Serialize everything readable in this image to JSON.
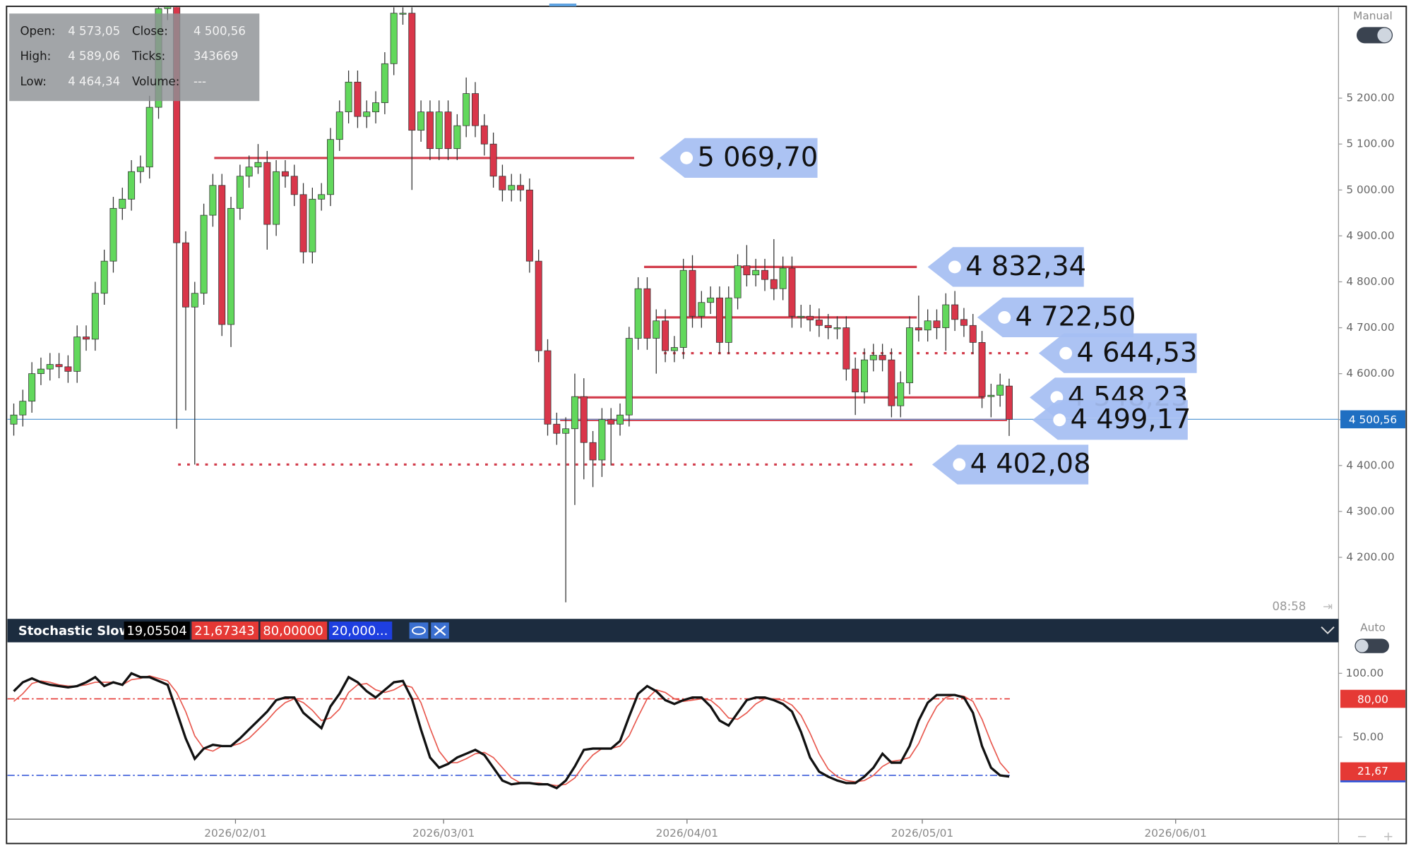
{
  "chart_data": [
    {
      "type": "candlestick",
      "open": [
        4490,
        4510,
        4540,
        4600,
        4610,
        4620,
        4615,
        4605,
        4680,
        4675,
        4775,
        4845,
        4960,
        4980,
        5040,
        5050,
        5180,
        5395,
        5400,
        4885,
        4745,
        4775,
        4945,
        5010,
        4707,
        4960,
        5030,
        5050,
        5060,
        4925,
        5040,
        5030,
        4990,
        4865,
        4980,
        4990,
        5110,
        5170,
        5235,
        5160,
        5170,
        5190,
        5275,
        5385,
        5385,
        5130,
        5170,
        5090,
        5170,
        5090,
        5140,
        5210,
        5140,
        5100,
        5030,
        5000,
        5010,
        5000,
        4845,
        4650,
        4490,
        4470,
        4480,
        4550,
        4450,
        4412,
        4500,
        4490,
        4510,
        4677,
        4785,
        4677,
        4715,
        4650,
        4657,
        4825,
        4725,
        4755,
        4765,
        4668,
        4765,
        4835,
        4815,
        4825,
        4805,
        4785,
        4830,
        4725,
        4725,
        4717,
        4705,
        4700,
        4700,
        4610,
        4560,
        4630,
        4640,
        4630,
        4530,
        4580,
        4700,
        4695,
        4715,
        4700,
        4750,
        4718,
        4705,
        4668,
        4550,
        4553,
        4573.05
      ],
      "high": [
        4535,
        4565,
        4625,
        4635,
        4645,
        4645,
        4640,
        4705,
        4705,
        4800,
        4870,
        4985,
        5005,
        5065,
        5075,
        5205,
        5420,
        5425,
        5425,
        4910,
        4800,
        4970,
        5035,
        5035,
        4985,
        5055,
        5075,
        5100,
        5085,
        5065,
        5065,
        5055,
        5015,
        5005,
        5015,
        5135,
        5195,
        5260,
        5260,
        5195,
        5215,
        5300,
        5398,
        5398,
        5398,
        5195,
        5195,
        5195,
        5195,
        5165,
        5245,
        5235,
        5165,
        5125,
        5055,
        5035,
        5035,
        5025,
        4870,
        4675,
        4515,
        4505,
        4600,
        4590,
        4475,
        4525,
        4525,
        4535,
        4702,
        4810,
        4810,
        4740,
        4740,
        4682,
        4850,
        4858,
        4780,
        4790,
        4790,
        4790,
        4860,
        4880,
        4850,
        4850,
        4893,
        4855,
        4855,
        4750,
        4750,
        4742,
        4730,
        4725,
        4725,
        4635,
        4655,
        4665,
        4665,
        4655,
        4605,
        4725,
        4770,
        4740,
        4740,
        4775,
        4780,
        4743,
        4730,
        4693,
        4578,
        4600,
        4589.06
      ],
      "low": [
        4465,
        4485,
        4515,
        4575,
        4585,
        4590,
        4580,
        4580,
        4650,
        4650,
        4750,
        4820,
        4935,
        4955,
        5015,
        5025,
        5155,
        5370,
        4480,
        4520,
        4402.08,
        4750,
        4920,
        4682,
        4658,
        4935,
        5005,
        5035,
        4870,
        4900,
        5005,
        4965,
        4840,
        4840,
        4955,
        4965,
        5085,
        5145,
        5135,
        5135,
        5145,
        5165,
        5250,
        5360,
        5000,
        5105,
        5065,
        5065,
        5065,
        5065,
        5115,
        5115,
        5075,
        5005,
        4975,
        4975,
        4975,
        4820,
        4625,
        4465,
        4445,
        4102,
        4314,
        4370,
        4353,
        4375,
        4400,
        4465,
        4485,
        4652,
        4652,
        4600,
        4625,
        4625,
        4632,
        4700,
        4700,
        4730,
        4643,
        4643,
        4740,
        4790,
        4790,
        4780,
        4760,
        4760,
        4700,
        4700,
        4692,
        4680,
        4675,
        4675,
        4585,
        4510,
        4535,
        4605,
        4605,
        4505,
        4505,
        4555,
        4670,
        4670,
        4675,
        4650,
        4693,
        4680,
        4643,
        4525,
        4505,
        4528,
        4464.34
      ],
      "close": [
        4510,
        4540,
        4600,
        4610,
        4620,
        4615,
        4605,
        4680,
        4675,
        4775,
        4845,
        4960,
        4980,
        5040,
        5050,
        5180,
        5395,
        5400,
        4885,
        4745,
        4775,
        4945,
        5010,
        4707,
        4960,
        5030,
        5050,
        5060,
        4925,
        5040,
        5030,
        4990,
        4865,
        4980,
        4990,
        5110,
        5170,
        5235,
        5160,
        5170,
        5190,
        5275,
        5385,
        5385,
        5130,
        5170,
        5090,
        5170,
        5090,
        5140,
        5210,
        5140,
        5100,
        5030,
        5000,
        5010,
        5000,
        4845,
        4650,
        4490,
        4470,
        4480,
        4550,
        4450,
        4412,
        4500,
        4490,
        4510,
        4677,
        4785,
        4677,
        4715,
        4650,
        4657,
        4825,
        4725,
        4755,
        4765,
        4668,
        4765,
        4835,
        4815,
        4825,
        4805,
        4785,
        4830,
        4725,
        4725,
        4717,
        4705,
        4700,
        4700,
        4610,
        4560,
        4630,
        4640,
        4630,
        4530,
        4580,
        4700,
        4695,
        4715,
        4700,
        4750,
        4718,
        4705,
        4668,
        4550,
        4553,
        4575,
        4500.56
      ],
      "color_up": "#62d85c",
      "color_down": "#d9364a",
      "xlim": [
        -0.7,
        146.4
      ],
      "xticks": [
        {
          "value": 24.5,
          "label": "2026/02/01"
        },
        {
          "value": 47.5,
          "label": "2026/03/01"
        },
        {
          "value": 74.4,
          "label": "2026/04/01"
        },
        {
          "value": 100.4,
          "label": "2026/05/01"
        },
        {
          "value": 128.4,
          "label": "2026/06/01"
        }
      ],
      "ylim": [
        4066,
        5398
      ],
      "yticks": [
        {
          "value": 5200,
          "label": "5 200.00"
        },
        {
          "value": 5100,
          "label": "5 100.00"
        },
        {
          "value": 5000,
          "label": "5 000.00"
        },
        {
          "value": 4900,
          "label": "4 900.00"
        },
        {
          "value": 4800,
          "label": "4 800.00"
        },
        {
          "value": 4700,
          "label": "4 700.00"
        },
        {
          "value": 4600,
          "label": "4 600.00"
        },
        {
          "value": 4500,
          "label": "4 500.00"
        },
        {
          "value": 4400,
          "label": "4 400.00"
        },
        {
          "value": 4300,
          "label": "4 300.00"
        },
        {
          "value": 4200,
          "label": "4 200.00"
        }
      ],
      "levels": [
        {
          "value": 5069.7,
          "label": "5 069,70",
          "style": "solid"
        },
        {
          "value": 4832.34,
          "label": "4 832,34",
          "style": "solid"
        },
        {
          "value": 4722.5,
          "label": "4 722,50",
          "style": "solid"
        },
        {
          "value": 4644.53,
          "label": "4 644,53",
          "style": "dotted"
        },
        {
          "value": 4548.23,
          "label": "4 548,23",
          "style": "solid"
        },
        {
          "value": 4499.17,
          "label": "4 499,17",
          "style": "solid"
        },
        {
          "value": 4402.08,
          "label": "4 402,08",
          "style": "dotted"
        }
      ],
      "level_color": "#d23c4b",
      "last_price": {
        "value": 4500.56,
        "label": "4 500,56",
        "color": "#1f6fc2"
      },
      "info": [
        [
          "Open:",
          "4 573,05",
          "Close:",
          "4 500,56"
        ],
        [
          "High:",
          "4 589,06",
          "Ticks:",
          "343669"
        ],
        [
          "Low:",
          "4 464,34",
          "Volume:",
          "---"
        ]
      ],
      "mode_label": "Manual",
      "countdown": "08:58"
    },
    {
      "type": "line",
      "title": "Stochastic Slow",
      "header_values": [
        {
          "label": "19,05504",
          "color": "#000000"
        },
        {
          "label": "21,67343",
          "color": "#e53935"
        },
        {
          "label": "80,00000",
          "color": "#e53935"
        },
        {
          "label": "20,000...",
          "color": "#1e3fe0"
        }
      ],
      "series": [
        {
          "color": "#111111",
          "values": [
            86,
            93,
            96,
            93,
            91,
            90,
            89,
            90,
            93,
            97,
            90,
            93,
            91,
            100,
            97,
            97,
            94,
            91,
            70,
            49,
            33,
            41,
            44,
            43,
            43,
            49,
            56,
            63,
            70,
            79,
            81,
            81,
            69,
            63,
            57,
            74,
            84,
            97,
            93,
            86,
            81,
            87,
            93,
            94,
            80,
            56,
            34,
            26,
            29,
            34,
            37,
            40,
            36,
            26,
            16,
            13,
            14,
            14,
            13,
            13,
            10,
            16,
            27,
            40,
            41,
            41,
            41,
            47,
            66,
            84,
            90,
            86,
            79,
            76,
            79,
            81,
            81,
            74,
            63,
            59,
            69,
            79,
            81,
            81,
            79,
            76,
            70,
            54,
            34,
            23,
            19,
            16,
            14,
            14,
            19,
            26,
            37,
            30,
            30,
            43,
            63,
            77,
            83,
            83,
            83,
            81,
            69,
            43,
            26,
            20,
            19.05504
          ]
        },
        {
          "color": "#e8584e",
          "values": [
            78,
            84,
            92,
            94,
            93,
            91,
            90,
            90,
            91,
            93,
            93,
            93,
            91,
            95,
            96,
            98,
            96,
            94,
            85,
            70,
            51,
            41,
            39,
            43,
            43,
            45,
            49,
            56,
            63,
            71,
            77,
            80,
            77,
            71,
            63,
            65,
            72,
            85,
            91,
            92,
            87,
            85,
            87,
            91,
            89,
            77,
            57,
            39,
            30,
            30,
            33,
            37,
            38,
            34,
            26,
            18,
            14,
            14,
            14,
            13,
            12,
            13,
            18,
            28,
            36,
            41,
            41,
            43,
            51,
            66,
            80,
            87,
            85,
            80,
            78,
            79,
            80,
            79,
            73,
            65,
            64,
            69,
            76,
            80,
            80,
            79,
            75,
            67,
            53,
            37,
            25,
            19,
            16,
            15,
            16,
            20,
            27,
            31,
            32,
            34,
            45,
            61,
            74,
            81,
            83,
            82,
            78,
            64,
            46,
            30,
            21.67343
          ],
          "last_label": "21,67"
        }
      ],
      "levels": [
        {
          "value": 80,
          "label": "80,00",
          "color": "#e53935"
        },
        {
          "value": 20,
          "color": "#3a5bd9"
        }
      ],
      "ylim": [
        -14.3,
        124.3
      ],
      "yticks": [
        {
          "value": 100,
          "label": "100.00"
        },
        {
          "value": 50,
          "label": "50.00"
        }
      ],
      "mode_label": "Auto"
    }
  ]
}
